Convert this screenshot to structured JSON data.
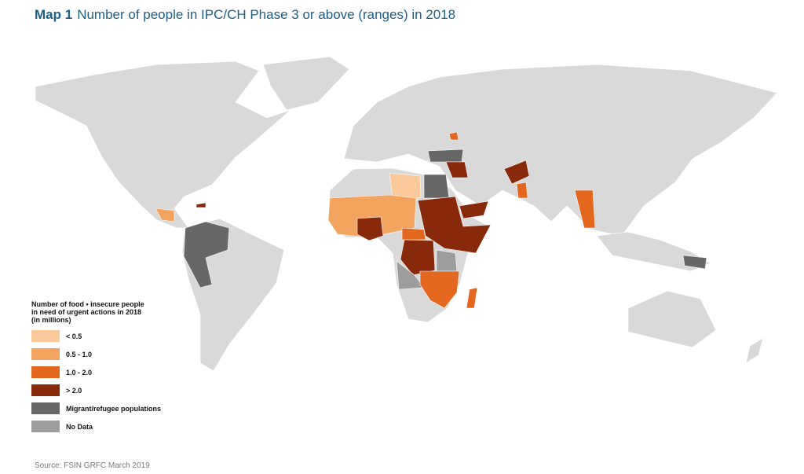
{
  "title": {
    "label": "Map 1",
    "text": "Number of people in IPC/CH Phase 3 or above (ranges) in 2018"
  },
  "legend": {
    "title": [
      "Number of food • insecure people",
      "in need of urgent actions in 2018",
      "(in millions)"
    ],
    "items": [
      {
        "label": "< 0.5",
        "color": "#fbc89c"
      },
      {
        "label": "0.5 - 1.0",
        "color": "#f2a35e"
      },
      {
        "label": "1.0 - 2.0",
        "color": "#e4671f"
      },
      {
        "label": "> 2.0",
        "color": "#88290b"
      },
      {
        "label": "Migrant/refugee populations",
        "color": "#676767"
      },
      {
        "label": "No Data",
        "color": "#9d9d9d"
      }
    ]
  },
  "source": "Source: FSIN GRFC March 2019"
}
